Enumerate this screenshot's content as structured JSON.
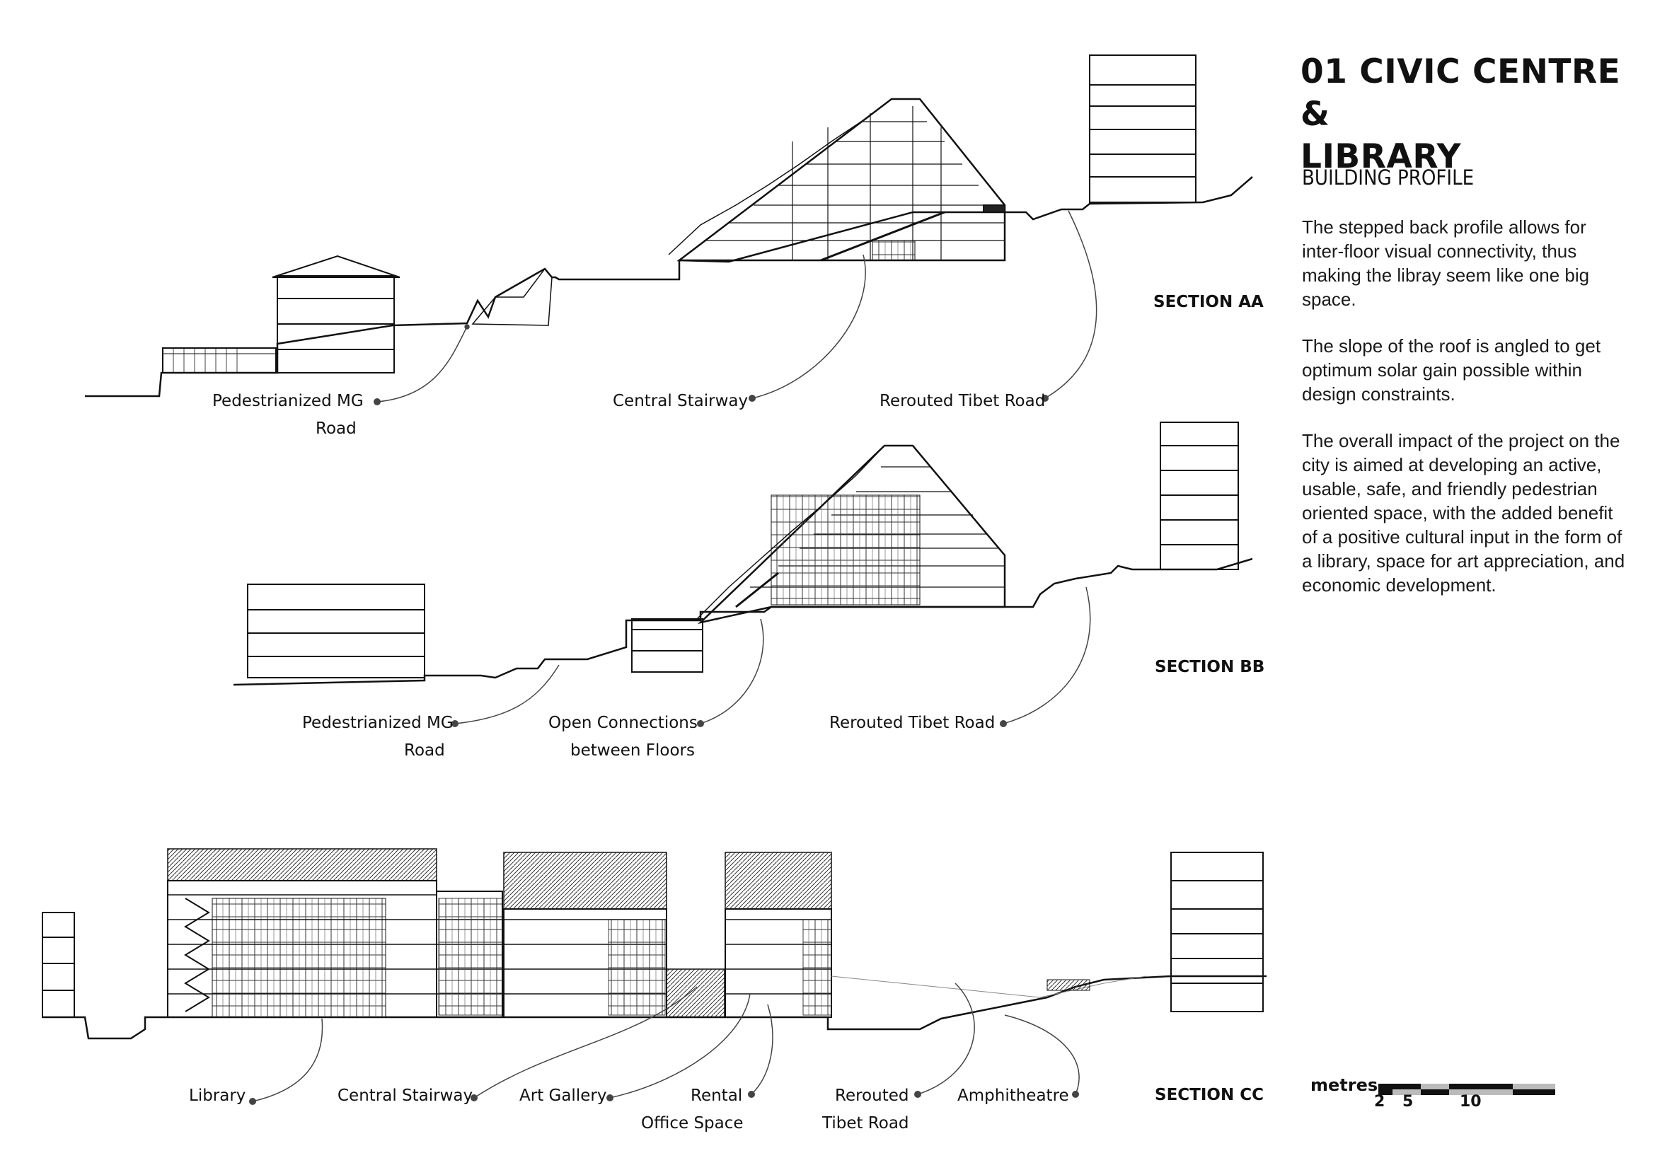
{
  "title_line1": "01 CIVIC CENTRE &",
  "title_line2": "LIBRARY",
  "subtitle": "BUILDING PROFILE",
  "paragraphs": [
    "The stepped back profile allows for inter-floor visual connectivity, thus making the libray seem like one big space.",
    "The slope of the roof is angled to get optimum solar gain possible within design constraints.",
    "The overall impact of the project on the city is aimed at developing an active, usable, safe, and friendly pedestrian oriented space, with the added benefit of a positive cultural input in the form of a library, space for art appreciation, and economic development."
  ],
  "section_aa": {
    "name": "SECTION AA",
    "labels": [
      "Pedestrianized MG",
      "Road",
      "Central Stairway",
      "Rerouted Tibet Road"
    ]
  },
  "section_bb": {
    "name": "SECTION BB",
    "labels": [
      "Pedestrianized MG",
      "Road",
      "Open Connections",
      "between Floors",
      "Rerouted Tibet Road"
    ]
  },
  "section_cc": {
    "name": "SECTION CC",
    "labels": [
      "Library",
      "Central Stairway",
      "Art Gallery",
      "Rental",
      "Office Space",
      "Rerouted",
      "Tibet Road",
      "Amphitheatre"
    ]
  },
  "scale": {
    "unit": "metres",
    "ticks": [
      "2",
      "5",
      "10"
    ]
  }
}
